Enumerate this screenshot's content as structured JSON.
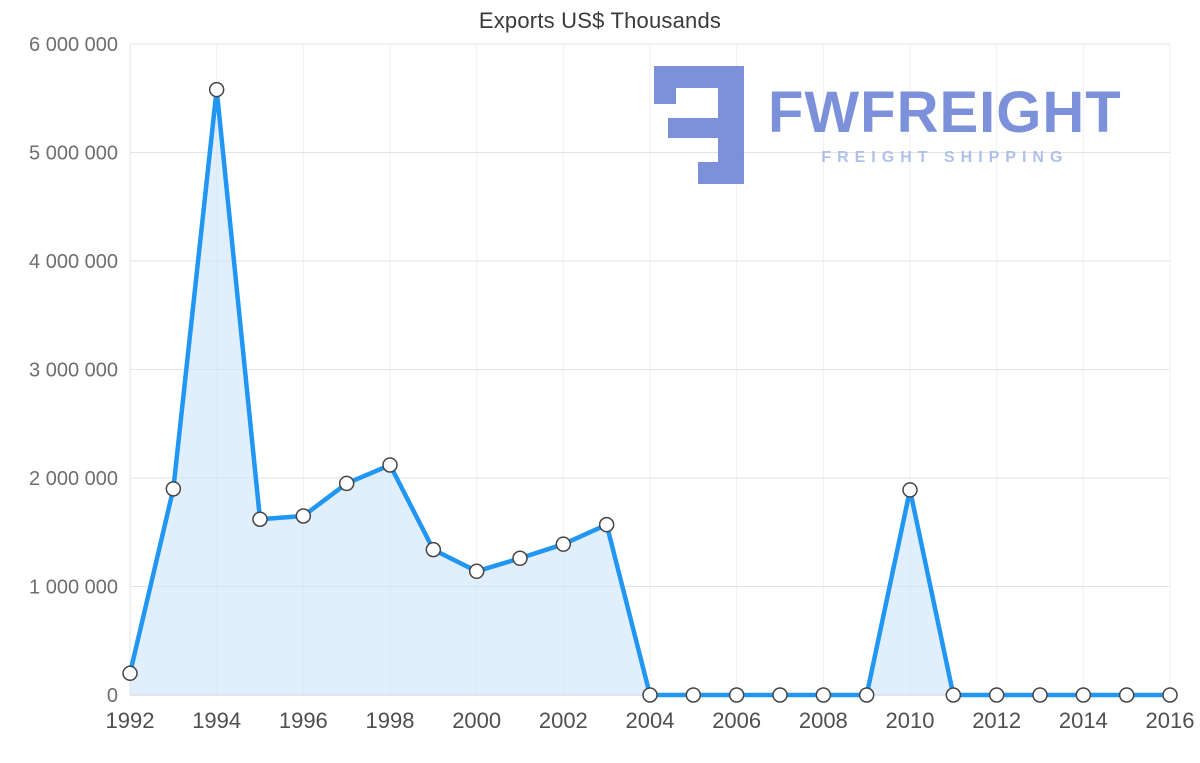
{
  "chart_data": {
    "type": "area",
    "title": "Exports US$ Thousands",
    "xlabel": "",
    "ylabel": "",
    "x": [
      1992,
      1993,
      1994,
      1995,
      1996,
      1997,
      1998,
      1999,
      2000,
      2001,
      2002,
      2003,
      2004,
      2005,
      2006,
      2007,
      2008,
      2009,
      2010,
      2011,
      2012,
      2013,
      2014,
      2015,
      2016
    ],
    "values": [
      200000,
      1900000,
      5580000,
      1620000,
      1650000,
      1950000,
      2120000,
      1340000,
      1140000,
      1260000,
      1390000,
      1570000,
      0,
      0,
      0,
      0,
      0,
      0,
      1890000,
      0,
      0,
      0,
      0,
      0,
      0
    ],
    "ylim": [
      0,
      6000000
    ],
    "y_tick_step": 1000000,
    "y_tick_labels": [
      "0",
      "1 000 000",
      "2 000 000",
      "3 000 000",
      "4 000 000",
      "5 000 000",
      "6 000 000"
    ],
    "x_tick_labels": [
      "1992",
      "1994",
      "1996",
      "1998",
      "2000",
      "2002",
      "2004",
      "2006",
      "2008",
      "2010",
      "2012",
      "2014",
      "2016"
    ],
    "grid": true,
    "legend": "none",
    "line_color": "#2196f3",
    "area_color": "#cce5f8",
    "marker_fill": "#ffffff",
    "marker_stroke": "#444444",
    "gridline_color": "#e3e3e3",
    "vertical_gridline_color": "#f0f0f0",
    "baseline_color": "#cccccc"
  },
  "logo": {
    "brand": "FWFREIGHT",
    "tagline": "FREIGHT SHIPPING",
    "brand_color": "#7388d8",
    "tagline_color": "#a9bce8"
  }
}
